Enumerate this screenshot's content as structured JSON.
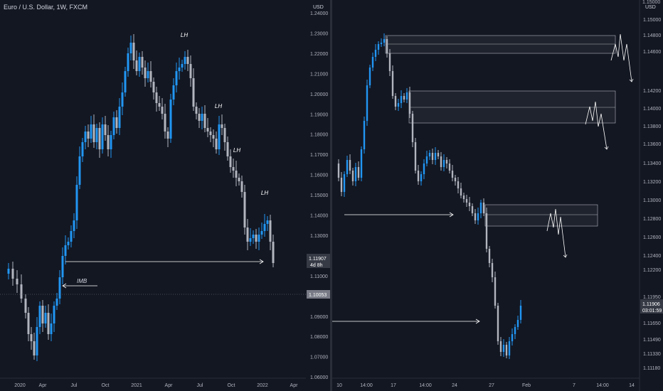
{
  "left_chart": {
    "title": "Euro / U.S. Dollar, 1W, FXCM",
    "x_labels": [
      "2020",
      "Apr",
      "Jul",
      "Oct",
      "2021",
      "Apr",
      "Jul",
      "Oct",
      "2022",
      "Apr"
    ],
    "annotations": [
      "LH",
      "LH",
      "LH",
      "LH"
    ],
    "imb_label": "IMB",
    "colors": {
      "up": "#2196f3",
      "down": "#b2b5be",
      "background": "#131722",
      "line": "#ffffff"
    }
  },
  "axis": {
    "currency": "USD",
    "ticks": [
      "1.24000",
      "1.23000",
      "1.22000",
      "1.21000",
      "1.20000",
      "1.19000",
      "1.18000",
      "1.17000",
      "1.16000",
      "1.15000",
      "1.14000",
      "1.13000",
      "1.12000",
      "1.11000",
      "1.10000",
      "1.09000",
      "1.08000",
      "1.07000",
      "1.06000"
    ],
    "price_label": "1.11907",
    "countdown": "4d 8h",
    "level_label": "1.10053"
  },
  "right_chart": {
    "x_labels": [
      "10",
      "14:00",
      "17",
      "14:00",
      "24",
      "27",
      "Feb",
      "7",
      "14:00",
      "14"
    ]
  },
  "right_axis": {
    "currency": "USD",
    "top_partial": "1.15000",
    "ticks": [
      "1.15000",
      "1.14800",
      "1.14600",
      "1.14200",
      "1.14000",
      "1.13800",
      "1.13600",
      "1.13400",
      "1.13200",
      "1.13000",
      "1.12800",
      "1.12600",
      "1.12400",
      "1.12200",
      "1.11950",
      "1.11650",
      "1.11490",
      "1.11330",
      "1.11180"
    ],
    "price_label": "1.11906",
    "countdown": "03:01:59"
  }
}
